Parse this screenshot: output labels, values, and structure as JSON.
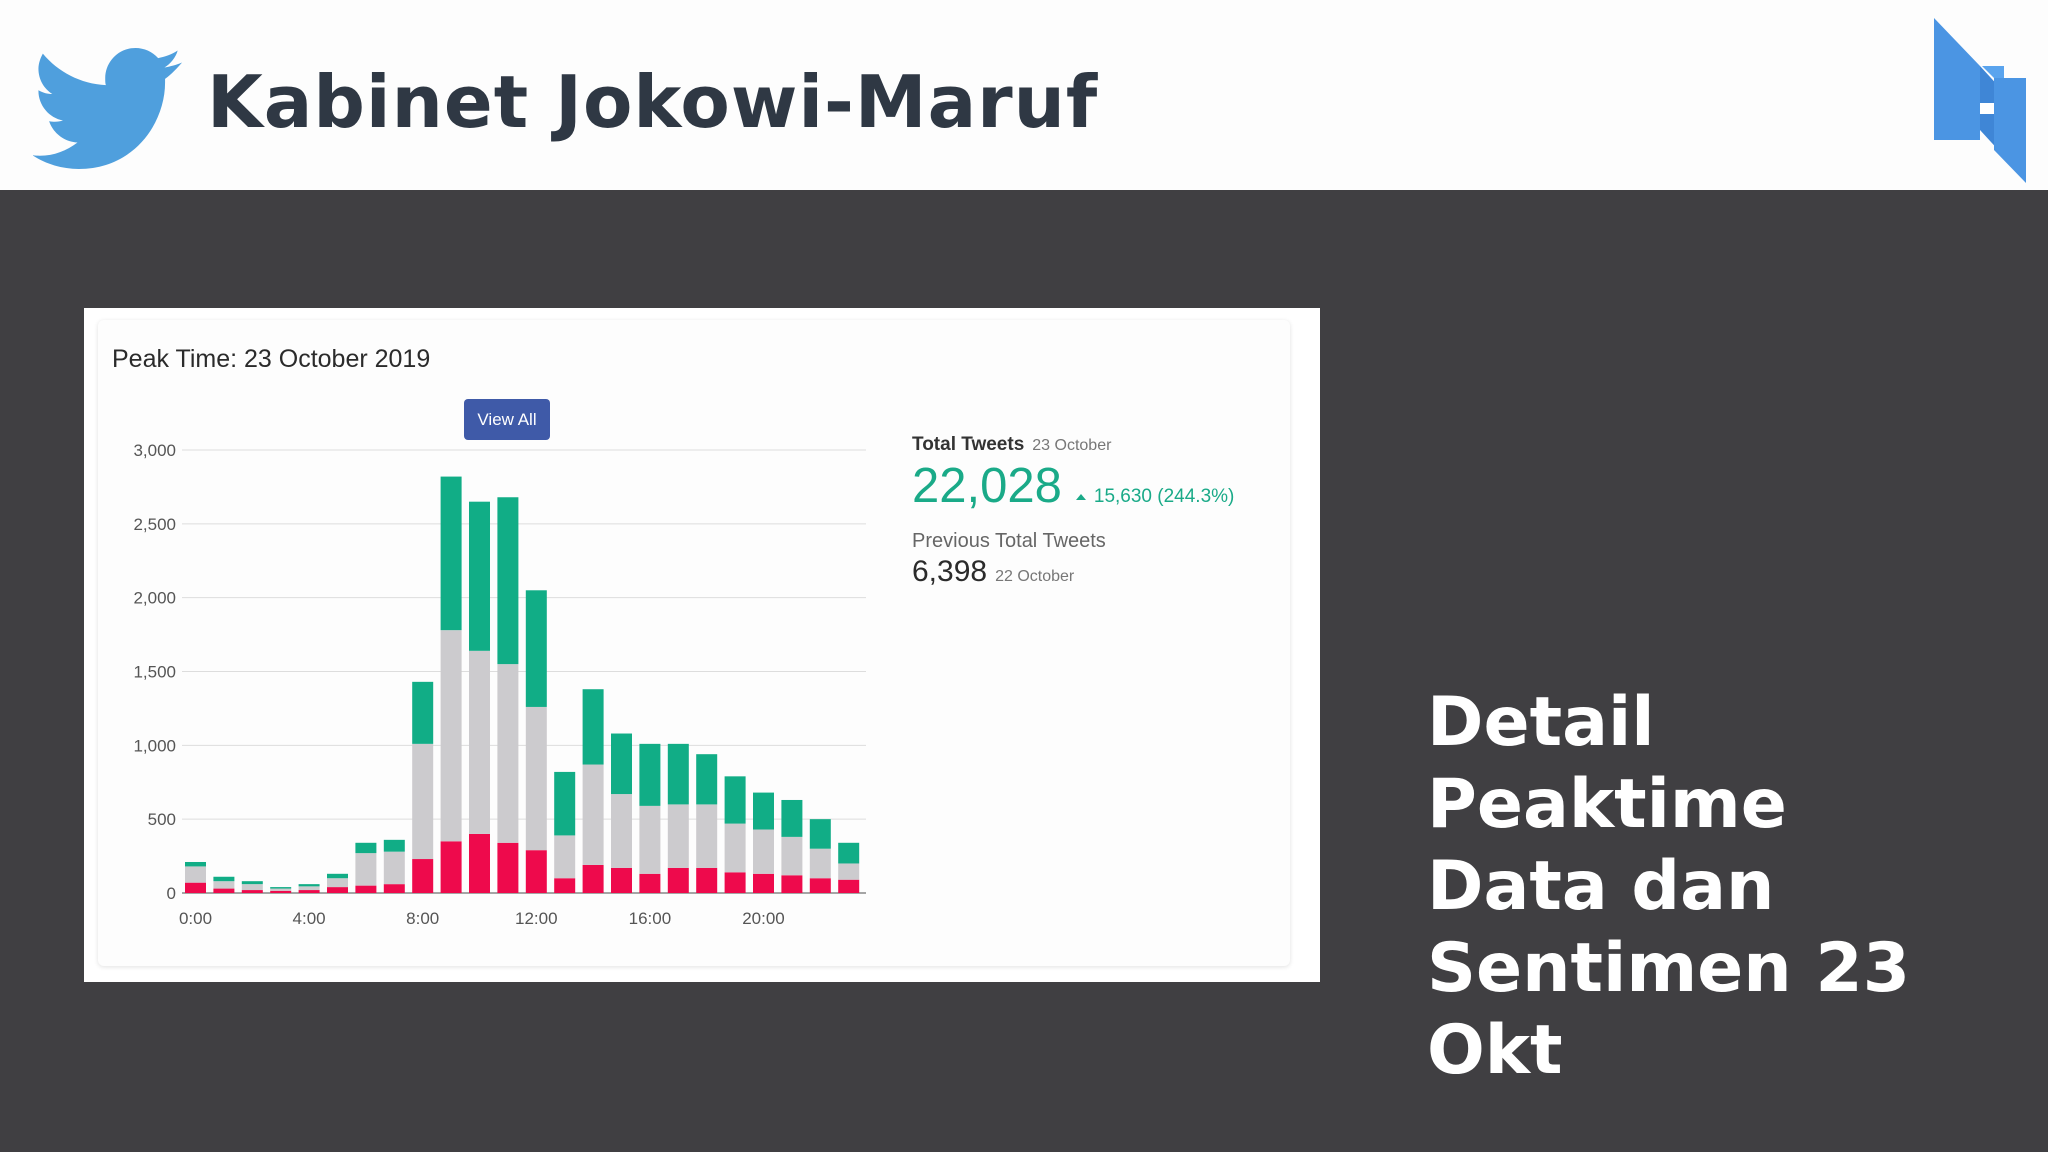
{
  "header": {
    "title": "Kabinet Jokowi-Maruf",
    "logo_icon": "twitter-bird-icon",
    "brand_icon": "brand-n-logo-icon",
    "colors": {
      "twitter": "#4f9fdd",
      "brand": "#4b95e3",
      "title": "#2f3844"
    }
  },
  "card": {
    "title": "Peak Time: 23 October 2019",
    "button": "View All"
  },
  "stats": {
    "total_label": "Total Tweets",
    "total_date": "23 October",
    "total_value": "22,028",
    "delta": "15,630 (244.3%)",
    "delta_icon": "triangle-up-icon",
    "prev_label": "Previous Total Tweets",
    "prev_value": "6,398",
    "prev_date": "22 October"
  },
  "side_text": [
    "Detail",
    "Peaktime",
    "Data dan",
    "Sentimen 23",
    "Okt"
  ],
  "chart_data": {
    "type": "bar",
    "stacked": true,
    "x": [
      0,
      1,
      2,
      3,
      4,
      5,
      6,
      7,
      8,
      9,
      10,
      11,
      12,
      13,
      14,
      15,
      16,
      17,
      18,
      19,
      20,
      21,
      22,
      23
    ],
    "x_tick_labels": [
      "0:00",
      "4:00",
      "8:00",
      "12:00",
      "16:00",
      "20:00"
    ],
    "x_tick_positions": [
      0,
      4,
      8,
      12,
      16,
      20
    ],
    "y_ticks": [
      0,
      500,
      1000,
      1500,
      2000,
      2500,
      3000
    ],
    "y_tick_labels": [
      "0",
      "500",
      "1,000",
      "1,500",
      "2,000",
      "2,500",
      "3,000"
    ],
    "ylim": [
      0,
      3000
    ],
    "grid": true,
    "series": [
      {
        "color": "#ee0a4c",
        "values": [
          70,
          30,
          20,
          15,
          20,
          40,
          50,
          60,
          230,
          350,
          400,
          340,
          290,
          100,
          190,
          170,
          130,
          170,
          170,
          140,
          130,
          120,
          100,
          90
        ]
      },
      {
        "color": "#cccbce",
        "values": [
          110,
          50,
          40,
          15,
          25,
          60,
          220,
          220,
          780,
          1430,
          1240,
          1210,
          970,
          290,
          680,
          500,
          460,
          430,
          430,
          330,
          300,
          260,
          200,
          110
        ]
      },
      {
        "color": "#11ad86",
        "values": [
          30,
          30,
          20,
          10,
          15,
          30,
          70,
          80,
          420,
          1040,
          1010,
          1130,
          790,
          430,
          510,
          410,
          420,
          410,
          340,
          320,
          250,
          250,
          200,
          140
        ]
      }
    ]
  }
}
